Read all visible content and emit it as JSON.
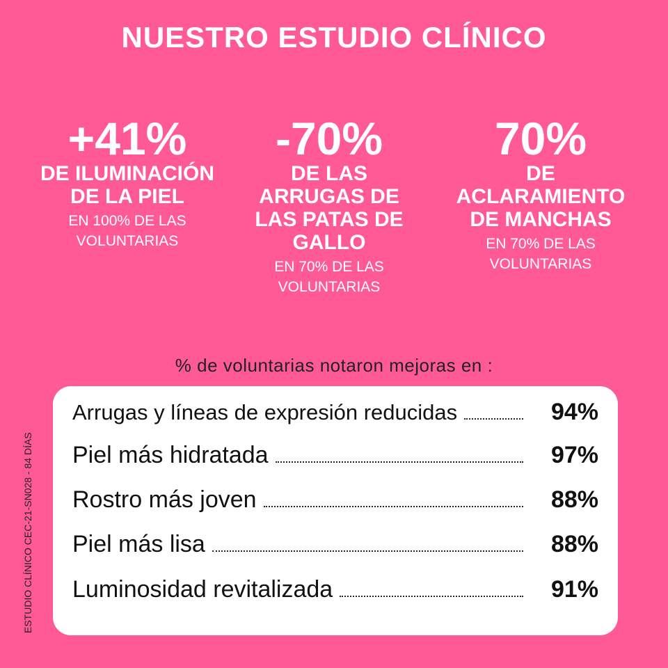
{
  "title": "NUESTRO ESTUDIO CLÍNICO",
  "stats": [
    {
      "value": "+41%",
      "label": "DE ILUMINACIÓN\nDE LA PIEL",
      "note": "EN 100% DE LAS\nVOLUNTARIAS"
    },
    {
      "value": "-70%",
      "label": "DE LAS\nARRUGAS DE\nLAS PATAS DE\nGALLO",
      "note": "EN 70% DE LAS\nVOLUNTARIAS"
    },
    {
      "value": "70%",
      "label": "DE ACLARAMIENTO\nDE MANCHAS",
      "note": "EN 70% DE LAS\nVOLUNTARIAS"
    }
  ],
  "caption": "% de voluntarias notaron mejoras en :",
  "side_note": "ESTUDIO CLÍNICO  CEC-21-SN028 - 84 DÍAS",
  "results": [
    {
      "label": "Arrugas y líneas de expresión reducidas",
      "value": "94%"
    },
    {
      "label": "Piel más hidratada",
      "value": "97%"
    },
    {
      "label": "Rostro más joven",
      "value": "88%"
    },
    {
      "label": "Piel más lisa",
      "value": "88%"
    },
    {
      "label": "Luminosidad revitalizada",
      "value": "91%"
    }
  ],
  "colors": {
    "background": "#FF5A96",
    "box": "#FFFFFF"
  }
}
